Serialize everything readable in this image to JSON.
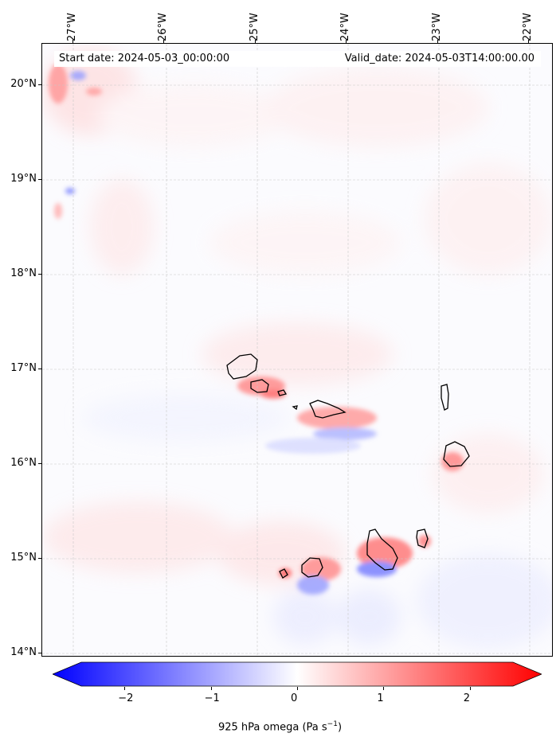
{
  "header": {
    "start_date": "Start date: 2024-05-03_00:00:00",
    "valid_date": "Valid_date: 2024-05-03T14:00:00.00"
  },
  "map": {
    "lon_range": [
      -27.3,
      -21.8
    ],
    "lat_range": [
      13.95,
      20.45
    ],
    "lon_labels": [
      {
        "value": -27,
        "text": "27°W"
      },
      {
        "value": -26,
        "text": "26°W"
      },
      {
        "value": -25,
        "text": "25°W"
      },
      {
        "value": -24,
        "text": "24°W"
      },
      {
        "value": -23,
        "text": "23°W"
      },
      {
        "value": -22,
        "text": "22°W"
      }
    ],
    "lat_labels": [
      {
        "value": 20,
        "text": "20°N"
      },
      {
        "value": 19,
        "text": "19°N"
      },
      {
        "value": 18,
        "text": "18°N"
      },
      {
        "value": 17,
        "text": "17°N"
      },
      {
        "value": 16,
        "text": "16°N"
      },
      {
        "value": 15,
        "text": "15°N"
      },
      {
        "value": 14,
        "text": "14°N"
      }
    ],
    "gridlines": true
  },
  "colorbar": {
    "ticks": [
      {
        "value": -2,
        "text": "−2"
      },
      {
        "value": -1,
        "text": "−1"
      },
      {
        "value": 0,
        "text": "0"
      },
      {
        "value": 1,
        "text": "1"
      },
      {
        "value": 2,
        "text": "2"
      }
    ],
    "range": [
      -2.5,
      2.5
    ],
    "label_main": "925 hPa omega (Pa s",
    "label_exp": "−1",
    "label_end": ")",
    "negative_color": "#0000ff",
    "zero_color": "#ffffff",
    "positive_color": "#ff0000"
  },
  "colors": {
    "coastline": "#000000",
    "gridline": "#c8c8c8"
  }
}
